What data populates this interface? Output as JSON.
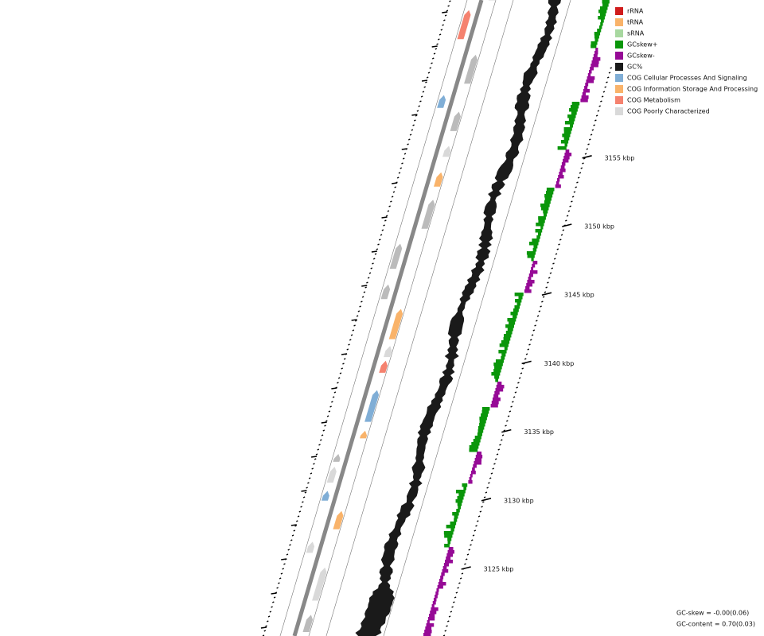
{
  "legend": [
    {
      "label": "rRNA",
      "color": "#d01c1c"
    },
    {
      "label": "tRNA",
      "color": "#f9b36a"
    },
    {
      "label": "sRNA",
      "color": "#a8d8a0"
    },
    {
      "label": "GCskew+",
      "color": "#0a960a"
    },
    {
      "label": "GCskew-",
      "color": "#960a96"
    },
    {
      "label": "GC%",
      "color": "#1a1a1a"
    },
    {
      "label": "COG Cellular Processes And Signaling",
      "color": "#80aed6"
    },
    {
      "label": "COG Information Storage And Processing",
      "color": "#f9b36a"
    },
    {
      "label": "COG Metabolism",
      "color": "#f5826f"
    },
    {
      "label": "COG Poorly Characterized",
      "color": "#d9d9d9"
    }
  ],
  "ticks": [
    "3125 kbp",
    "3130 kbp",
    "3135 kbp",
    "3140 kbp",
    "3145 kbp",
    "3150 kbp",
    "3155 kbp"
  ],
  "footer": {
    "gc_skew": "GC-skew = -0.00(0.06)",
    "gc_content": "GC-content = 0.70(0.03)"
  }
}
